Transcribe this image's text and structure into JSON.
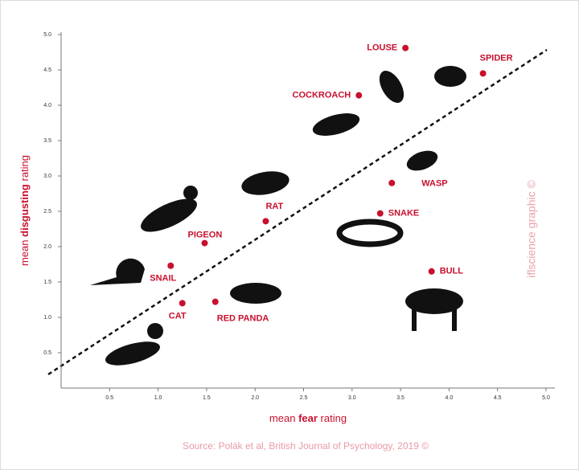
{
  "chart_data": {
    "type": "scatter",
    "xlabel": [
      "mean",
      "fear",
      "rating"
    ],
    "ylabel": [
      "mean",
      "disgusting",
      "rating"
    ],
    "source": "Source: Polák et al, British Journal of Psychology, 2019 ©",
    "watermark": "iflscience graphic ©",
    "color": "#c8102e",
    "xlim": [
      0,
      5
    ],
    "ylim": [
      0,
      5
    ],
    "xticks": [
      0.5,
      {
        "value": 1,
        "label": "1.0"
      },
      1.5,
      {
        "value": 2,
        "label": "2.0"
      },
      2.5,
      {
        "value": 3,
        "label": "3.0"
      },
      3.5,
      {
        "value": 4,
        "label": "4.0"
      },
      4.5,
      {
        "value": 5,
        "label": "5.0"
      }
    ],
    "yticks": [
      0.5,
      {
        "value": 1,
        "label": "1.0"
      },
      1.5,
      {
        "value": 2,
        "label": "2.0"
      },
      2.5,
      {
        "value": 3,
        "label": "3.0"
      },
      3.5,
      {
        "value": 4,
        "label": "4.0"
      },
      4.5,
      {
        "value": 5,
        "label": "5.0"
      }
    ],
    "labels": [
      "LOUSE",
      "SPIDER",
      "COCKROACH",
      "WASP",
      "SNAKE",
      "BULL",
      "RAT",
      "PIGEON",
      "SNAIL",
      "CAT",
      "RED PANDA"
    ],
    "x": [
      3.55,
      4.35,
      3.07,
      3.41,
      3.29,
      3.82,
      2.11,
      1.48,
      1.13,
      1.25,
      1.59
    ],
    "y": [
      4.81,
      4.45,
      4.14,
      2.9,
      2.47,
      1.65,
      2.36,
      2.05,
      1.73,
      1.2,
      1.22
    ]
  }
}
